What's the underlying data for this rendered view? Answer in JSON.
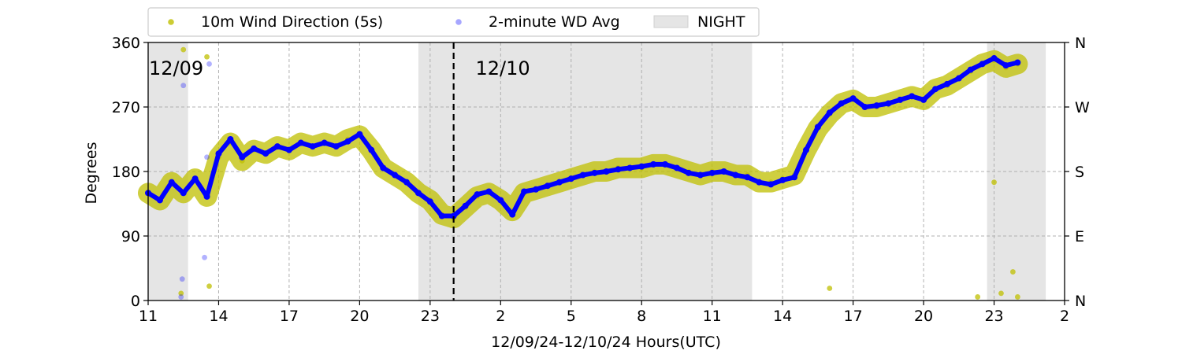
{
  "chart_data": {
    "type": "scatter",
    "title": "",
    "xlabel": "12/09/24-12/10/24  Hours(UTC)",
    "ylabel": "Degrees",
    "x_unit": "hours (UTC)",
    "xlim": [
      11,
      50
    ],
    "ylim": [
      0,
      360
    ],
    "x_ticks": [
      {
        "x": 11,
        "label": "11"
      },
      {
        "x": 14,
        "label": "14"
      },
      {
        "x": 17,
        "label": "17"
      },
      {
        "x": 20,
        "label": "20"
      },
      {
        "x": 23,
        "label": "23"
      },
      {
        "x": 26,
        "label": "2"
      },
      {
        "x": 29,
        "label": "5"
      },
      {
        "x": 32,
        "label": "8"
      },
      {
        "x": 35,
        "label": "11"
      },
      {
        "x": 38,
        "label": "14"
      },
      {
        "x": 41,
        "label": "17"
      },
      {
        "x": 44,
        "label": "20"
      },
      {
        "x": 47,
        "label": "23"
      },
      {
        "x": 50,
        "label": "2"
      }
    ],
    "y_ticks": [
      {
        "y": 0,
        "label": "0"
      },
      {
        "y": 90,
        "label": "90"
      },
      {
        "y": 180,
        "label": "180"
      },
      {
        "y": 270,
        "label": "270"
      },
      {
        "y": 360,
        "label": "360"
      }
    ],
    "right_axis_ticks": [
      {
        "y": 0,
        "label": "N"
      },
      {
        "y": 90,
        "label": "E"
      },
      {
        "y": 180,
        "label": "S"
      },
      {
        "y": 270,
        "label": "W"
      },
      {
        "y": 360,
        "label": "N"
      }
    ],
    "grid": true,
    "legend_placement": "top-center-above-plot",
    "legend": [
      {
        "label": "10m Wind Direction (5s)",
        "color": "#bfbf00",
        "kind": "marker"
      },
      {
        "label": "2-minute WD Avg",
        "color": "#0000ff",
        "kind": "marker"
      },
      {
        "label": "NIGHT",
        "color": "#e5e5e5",
        "kind": "patch"
      }
    ],
    "night_periods": [
      [
        11.0,
        12.7
      ],
      [
        22.5,
        36.7
      ],
      [
        46.7,
        49.2
      ]
    ],
    "date_divider_x": 24,
    "date_labels": [
      {
        "x": 11.0,
        "label": "12/09"
      },
      {
        "x": 24.9,
        "label": "12/10"
      }
    ],
    "series": [
      {
        "name": "10m Wind Direction (5s)",
        "color": "#bfbf00",
        "x": [
          11.0,
          11.5,
          12.0,
          12.5,
          13.0,
          13.5,
          14.0,
          14.5,
          15.0,
          15.5,
          16.0,
          16.5,
          17.0,
          17.5,
          18.0,
          18.5,
          19.0,
          19.5,
          20.0,
          20.5,
          21.0,
          21.5,
          22.0,
          22.5,
          23.0,
          23.5,
          24.0,
          24.5,
          25.0,
          25.5,
          26.0,
          26.5,
          27.0,
          27.5,
          28.0,
          28.5,
          29.0,
          29.5,
          30.0,
          30.5,
          31.0,
          31.5,
          32.0,
          32.5,
          33.0,
          33.5,
          34.0,
          34.5,
          35.0,
          35.5,
          36.0,
          36.5,
          37.0,
          37.5,
          38.0,
          38.5,
          39.0,
          39.5,
          40.0,
          40.5,
          41.0,
          41.5,
          42.0,
          42.5,
          43.0,
          43.5,
          44.0,
          44.5,
          45.0,
          45.5,
          46.0,
          46.5,
          47.0,
          47.5,
          48.0
        ],
        "values": [
          150,
          140,
          165,
          150,
          170,
          145,
          200,
          220,
          195,
          210,
          205,
          215,
          210,
          220,
          215,
          220,
          215,
          225,
          230,
          210,
          185,
          175,
          165,
          150,
          140,
          120,
          115,
          130,
          145,
          150,
          140,
          125,
          150,
          155,
          160,
          165,
          170,
          175,
          180,
          180,
          185,
          185,
          185,
          190,
          190,
          185,
          180,
          175,
          180,
          180,
          175,
          175,
          165,
          165,
          170,
          175,
          210,
          240,
          260,
          275,
          280,
          270,
          270,
          275,
          280,
          285,
          280,
          295,
          300,
          310,
          320,
          330,
          335,
          325,
          330
        ]
      },
      {
        "name": "2-minute WD Avg",
        "color": "#0000ff",
        "x": [
          11.0,
          11.5,
          12.0,
          12.5,
          13.0,
          13.5,
          14.0,
          14.5,
          15.0,
          15.5,
          16.0,
          16.5,
          17.0,
          17.5,
          18.0,
          18.5,
          19.0,
          19.5,
          20.0,
          20.5,
          21.0,
          21.5,
          22.0,
          22.5,
          23.0,
          23.5,
          24.0,
          24.5,
          25.0,
          25.5,
          26.0,
          26.5,
          27.0,
          27.5,
          28.0,
          28.5,
          29.0,
          29.5,
          30.0,
          30.5,
          31.0,
          31.5,
          32.0,
          32.5,
          33.0,
          33.5,
          34.0,
          34.5,
          35.0,
          35.5,
          36.0,
          36.5,
          37.0,
          37.5,
          38.0,
          38.5,
          39.0,
          39.5,
          40.0,
          40.5,
          41.0,
          41.5,
          42.0,
          42.5,
          43.0,
          43.5,
          44.0,
          44.5,
          45.0,
          45.5,
          46.0,
          46.5,
          47.0,
          47.5,
          48.0
        ],
        "values": [
          150,
          140,
          165,
          150,
          170,
          145,
          205,
          225,
          200,
          212,
          205,
          215,
          210,
          220,
          215,
          220,
          215,
          222,
          232,
          210,
          185,
          175,
          165,
          150,
          138,
          118,
          118,
          132,
          148,
          152,
          140,
          120,
          152,
          155,
          160,
          165,
          170,
          175,
          178,
          180,
          183,
          185,
          187,
          190,
          190,
          185,
          178,
          175,
          178,
          180,
          175,
          172,
          165,
          162,
          168,
          172,
          210,
          242,
          262,
          275,
          282,
          270,
          272,
          275,
          280,
          285,
          280,
          295,
          302,
          310,
          322,
          330,
          338,
          328,
          332
        ]
      }
    ],
    "scatter_outliers": [
      {
        "series": "10m Wind Direction (5s)",
        "x": [
          12.4,
          12.5,
          13.5,
          13.6,
          40.0,
          46.3,
          47.0,
          47.3,
          47.8,
          48.0
        ],
        "values": [
          10,
          350,
          340,
          20,
          17,
          5,
          165,
          10,
          40,
          5
        ]
      },
      {
        "series": "2-minute WD Avg",
        "x": [
          12.4,
          12.45,
          12.5,
          13.4,
          13.5,
          13.6
        ],
        "values": [
          5,
          30,
          300,
          60,
          200,
          330
        ]
      }
    ]
  }
}
